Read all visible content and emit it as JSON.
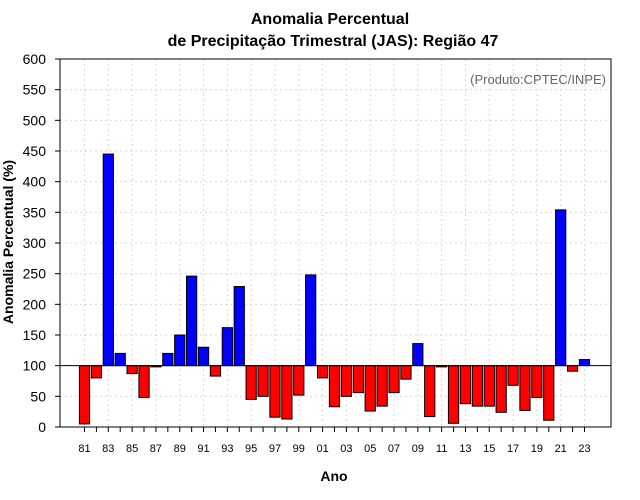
{
  "chart_data": {
    "type": "bar",
    "title": "Anomalia Percentual",
    "subtitle": "de Precipitação Trimestral (JAS): Região 47",
    "annotation": "(Produto:CPTEC/INPE)",
    "xlabel": "Ano",
    "ylabel": "Anomalia Percentual (%)",
    "ylim": [
      0,
      600
    ],
    "yticks": [
      0,
      50,
      100,
      150,
      200,
      250,
      300,
      350,
      400,
      450,
      500,
      550,
      600
    ],
    "baseline": 100,
    "grid": true,
    "colors": {
      "above": "#0000ff",
      "below": "#ff0000",
      "baseline": "#000000",
      "grid": "#d9d9d9"
    },
    "categories": [
      "81",
      "82",
      "83",
      "84",
      "85",
      "86",
      "87",
      "88",
      "89",
      "90",
      "91",
      "92",
      "93",
      "94",
      "95",
      "96",
      "97",
      "98",
      "99",
      "00",
      "01",
      "02",
      "03",
      "04",
      "05",
      "06",
      "07",
      "08",
      "09",
      "10",
      "11",
      "12",
      "13",
      "14",
      "15",
      "16",
      "17",
      "18",
      "19",
      "20",
      "21",
      "22",
      "23"
    ],
    "xtick_labels": [
      "81",
      "83",
      "85",
      "87",
      "89",
      "91",
      "93",
      "95",
      "97",
      "99",
      "01",
      "03",
      "05",
      "07",
      "09",
      "11",
      "13",
      "15",
      "17",
      "19",
      "21",
      "23"
    ],
    "values": [
      5,
      80,
      445,
      120,
      87,
      48,
      98,
      120,
      150,
      246,
      130,
      83,
      162,
      229,
      45,
      50,
      16,
      13,
      52,
      248,
      80,
      33,
      50,
      56,
      26,
      34,
      56,
      78,
      136,
      17,
      98,
      6,
      38,
      34,
      34,
      24,
      68,
      27,
      48,
      11,
      354,
      91,
      110
    ]
  }
}
